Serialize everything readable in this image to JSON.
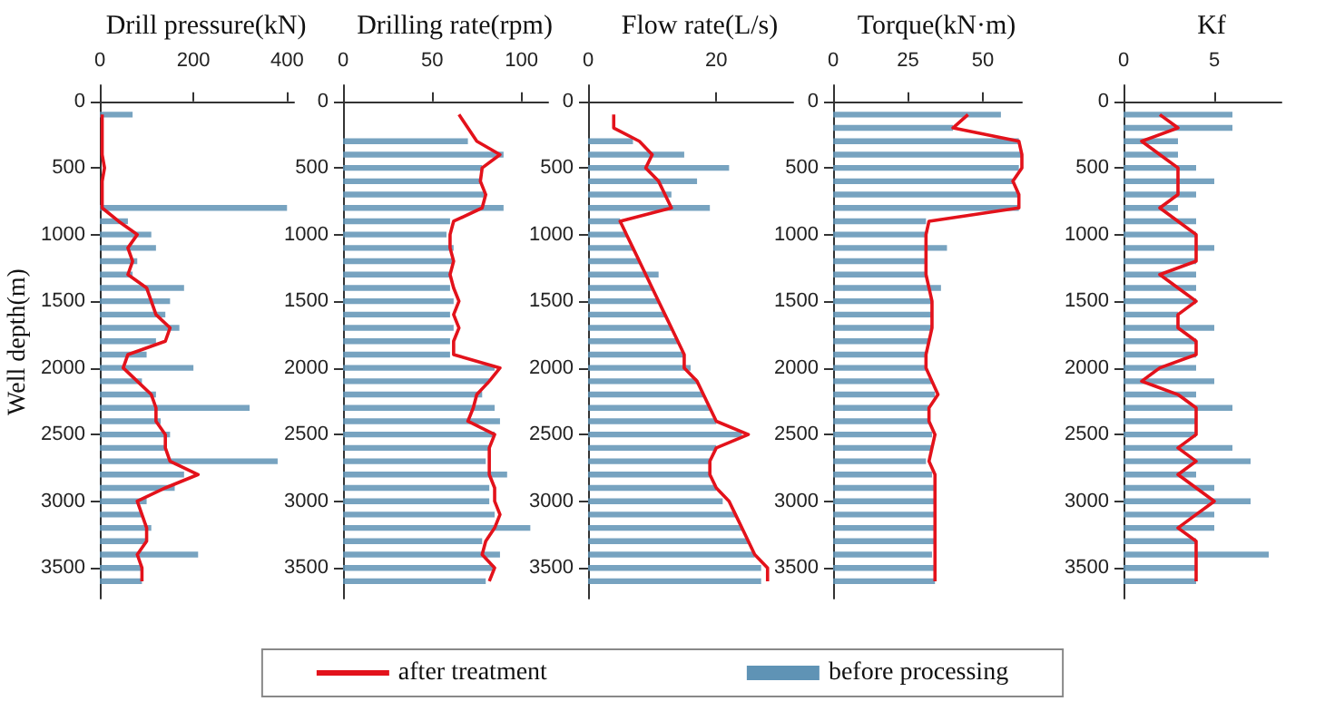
{
  "chart_data": [
    {
      "type": "line",
      "orientation": "horizontal",
      "title": "Drill pressure(kN)",
      "ylabel": "Well depth(m)",
      "legend": "bottom",
      "xlim": [
        0,
        415
      ],
      "xticks": [
        0,
        200,
        400
      ],
      "ylim": [
        3730,
        -120
      ],
      "yticks": [
        0,
        500,
        1000,
        1500,
        2000,
        2500,
        3000,
        3500
      ],
      "x": [
        100,
        200,
        300,
        400,
        500,
        600,
        700,
        800,
        900,
        1000,
        1100,
        1200,
        1300,
        1400,
        1500,
        1600,
        1700,
        1800,
        1900,
        2000,
        2100,
        2200,
        2300,
        2400,
        2500,
        2600,
        2700,
        2800,
        2900,
        3000,
        3100,
        3200,
        3300,
        3400,
        3500,
        3600
      ],
      "series": [
        {
          "type": "bar",
          "name": "before processing",
          "color": "#5f93b5",
          "values": [
            70,
            null,
            null,
            null,
            null,
            null,
            null,
            400,
            60,
            110,
            120,
            80,
            70,
            180,
            150,
            140,
            170,
            120,
            100,
            200,
            90,
            120,
            320,
            130,
            150,
            140,
            380,
            180,
            160,
            100,
            90,
            110,
            100,
            210,
            90,
            90
          ]
        },
        {
          "name": "after treatment",
          "color": "#e3121b",
          "values": [
            5,
            5,
            5,
            5,
            10,
            5,
            5,
            5,
            40,
            80,
            60,
            70,
            60,
            100,
            110,
            120,
            150,
            140,
            60,
            50,
            80,
            110,
            120,
            120,
            140,
            140,
            150,
            210,
            140,
            80,
            90,
            100,
            100,
            80,
            90,
            90
          ]
        }
      ]
    },
    {
      "type": "line",
      "orientation": "horizontal",
      "title": "Drilling rate(rpm)",
      "xlim": [
        0,
        115
      ],
      "xticks": [
        0,
        50,
        100
      ],
      "ylim": [
        3730,
        -120
      ],
      "yticks": [
        0,
        500,
        1000,
        1500,
        2000,
        2500,
        3000,
        3500
      ],
      "x": [
        100,
        200,
        300,
        400,
        500,
        600,
        700,
        800,
        900,
        1000,
        1100,
        1200,
        1300,
        1400,
        1500,
        1600,
        1700,
        1800,
        1900,
        2000,
        2100,
        2200,
        2300,
        2400,
        2500,
        2600,
        2700,
        2800,
        2900,
        3000,
        3100,
        3200,
        3300,
        3400,
        3500,
        3600
      ],
      "series": [
        {
          "type": "bar",
          "color": "#5f93b5",
          "values": [
            null,
            null,
            70,
            90,
            78,
            77,
            80,
            90,
            60,
            58,
            62,
            62,
            60,
            60,
            62,
            60,
            62,
            60,
            60,
            85,
            82,
            78,
            85,
            88,
            85,
            82,
            80,
            92,
            82,
            82,
            85,
            105,
            78,
            88,
            85,
            80
          ]
        },
        {
          "color": "#e3121b",
          "values": [
            65,
            70,
            75,
            88,
            78,
            77,
            80,
            78,
            62,
            60,
            60,
            62,
            60,
            62,
            65,
            62,
            65,
            62,
            62,
            88,
            82,
            75,
            73,
            70,
            85,
            82,
            82,
            82,
            85,
            85,
            88,
            85,
            80,
            78,
            85,
            82
          ]
        }
      ]
    },
    {
      "type": "line",
      "orientation": "horizontal",
      "title": "Flow rate(L/s)",
      "xlim": [
        0,
        32
      ],
      "xticks": [
        0,
        20
      ],
      "ylim": [
        3730,
        -120
      ],
      "yticks": [
        0,
        500,
        1000,
        1500,
        2000,
        2500,
        3000,
        3500
      ],
      "x": [
        100,
        200,
        300,
        400,
        500,
        600,
        700,
        800,
        900,
        1000,
        1100,
        1200,
        1300,
        1400,
        1500,
        1600,
        1700,
        1800,
        1900,
        2000,
        2100,
        2200,
        2300,
        2400,
        2500,
        2600,
        2700,
        2800,
        2900,
        3000,
        3100,
        3200,
        3300,
        3400,
        3500,
        3600
      ],
      "series": [
        {
          "type": "bar",
          "color": "#5f93b5",
          "values": [
            null,
            null,
            7,
            15,
            22,
            17,
            13,
            19,
            5,
            6,
            7,
            8,
            11,
            10,
            11,
            12,
            13,
            14,
            15,
            16,
            17,
            18,
            19,
            20,
            24,
            20,
            19,
            19,
            20,
            21,
            23,
            24,
            25,
            26,
            27,
            27
          ]
        },
        {
          "color": "#e3121b",
          "values": [
            4,
            4,
            8,
            10,
            9,
            11,
            12,
            13,
            5,
            6,
            7,
            8,
            9,
            10,
            11,
            12,
            13,
            14,
            15,
            15,
            17,
            18,
            19,
            20,
            25,
            20,
            19,
            19,
            20,
            22,
            23,
            24,
            25,
            26,
            28,
            28
          ]
        }
      ]
    },
    {
      "type": "line",
      "orientation": "horizontal",
      "title": "Torque(kN·m)",
      "xlim": [
        0,
        63
      ],
      "xticks": [
        0,
        25,
        50
      ],
      "ylim": [
        3730,
        -120
      ],
      "yticks": [
        0,
        500,
        1000,
        1500,
        2000,
        2500,
        3000,
        3500
      ],
      "x": [
        100,
        200,
        300,
        400,
        500,
        600,
        700,
        800,
        900,
        1000,
        1100,
        1200,
        1300,
        1400,
        1500,
        1600,
        1700,
        1800,
        1900,
        2000,
        2100,
        2200,
        2300,
        2400,
        2500,
        2600,
        2700,
        2800,
        2900,
        3000,
        3100,
        3200,
        3300,
        3400,
        3500,
        3600
      ],
      "series": [
        {
          "type": "bar",
          "color": "#5f93b5",
          "values": [
            56,
            40,
            62,
            63,
            62,
            60,
            62,
            62,
            31,
            31,
            38,
            31,
            31,
            36,
            33,
            33,
            33,
            32,
            31,
            31,
            33,
            34,
            32,
            32,
            33,
            33,
            31,
            33,
            34,
            34,
            34,
            34,
            34,
            33,
            34,
            34
          ]
        },
        {
          "color": "#e3121b",
          "values": [
            45,
            40,
            62,
            63,
            63,
            60,
            62,
            62,
            32,
            31,
            31,
            31,
            31,
            32,
            33,
            33,
            33,
            32,
            31,
            31,
            33,
            35,
            32,
            32,
            34,
            33,
            32,
            34,
            34,
            34,
            34,
            34,
            34,
            34,
            34,
            34
          ]
        }
      ]
    },
    {
      "type": "line",
      "orientation": "horizontal",
      "title": "Kf",
      "xlim": [
        0,
        8.7
      ],
      "xticks": [
        0,
        5
      ],
      "ylim": [
        3730,
        -120
      ],
      "yticks": [
        0,
        500,
        1000,
        1500,
        2000,
        2500,
        3000,
        3500
      ],
      "x": [
        100,
        200,
        300,
        400,
        500,
        600,
        700,
        800,
        900,
        1000,
        1100,
        1200,
        1300,
        1400,
        1500,
        1600,
        1700,
        1800,
        1900,
        2000,
        2100,
        2200,
        2300,
        2400,
        2500,
        2600,
        2700,
        2800,
        2900,
        3000,
        3100,
        3200,
        3300,
        3400,
        3500,
        3600
      ],
      "series": [
        {
          "type": "bar",
          "color": "#5f93b5",
          "values": [
            6,
            6,
            3,
            3,
            4,
            5,
            4,
            3,
            4,
            4,
            5,
            4,
            4,
            4,
            4,
            3,
            5,
            4,
            4,
            4,
            5,
            4,
            6,
            4,
            4,
            6,
            7,
            4,
            5,
            7,
            5,
            5,
            4,
            8,
            4,
            4
          ]
        },
        {
          "color": "#e3121b",
          "values": [
            2,
            3,
            1,
            2,
            3,
            3,
            3,
            2,
            3,
            4,
            4,
            4,
            2,
            3,
            4,
            3,
            3,
            4,
            4,
            2,
            1,
            3,
            4,
            4,
            4,
            3,
            4,
            3,
            4,
            5,
            4,
            3,
            4,
            4,
            4,
            4
          ]
        }
      ]
    }
  ]
}
